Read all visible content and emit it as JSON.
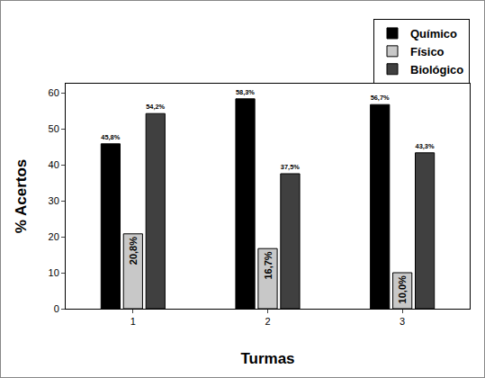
{
  "chart_data": {
    "type": "bar",
    "x_label": "Turmas",
    "y_label": "% Acertos",
    "categories": [
      "1",
      "2",
      "3"
    ],
    "series": [
      {
        "name": "Químico",
        "color": "#000000",
        "values": [
          45.8,
          58.3,
          56.7
        ],
        "value_labels": [
          "45,8%",
          "58,3%",
          "56,7%"
        ]
      },
      {
        "name": "Físico",
        "color": "#c8c8c8",
        "values": [
          20.8,
          16.7,
          10.0
        ],
        "value_labels": [
          "20,8%",
          "16,7%",
          "10,0%"
        ]
      },
      {
        "name": "Biológico",
        "color": "#404040",
        "values": [
          54.2,
          37.5,
          43.3
        ],
        "value_labels": [
          "54,2%",
          "37,5%",
          "43,3%"
        ]
      }
    ],
    "ylim": [
      0,
      62.5
    ],
    "yticks": [
      0,
      10,
      20,
      30,
      40,
      50,
      60
    ],
    "grid": false,
    "legend": "top right",
    "data_labels": true
  }
}
